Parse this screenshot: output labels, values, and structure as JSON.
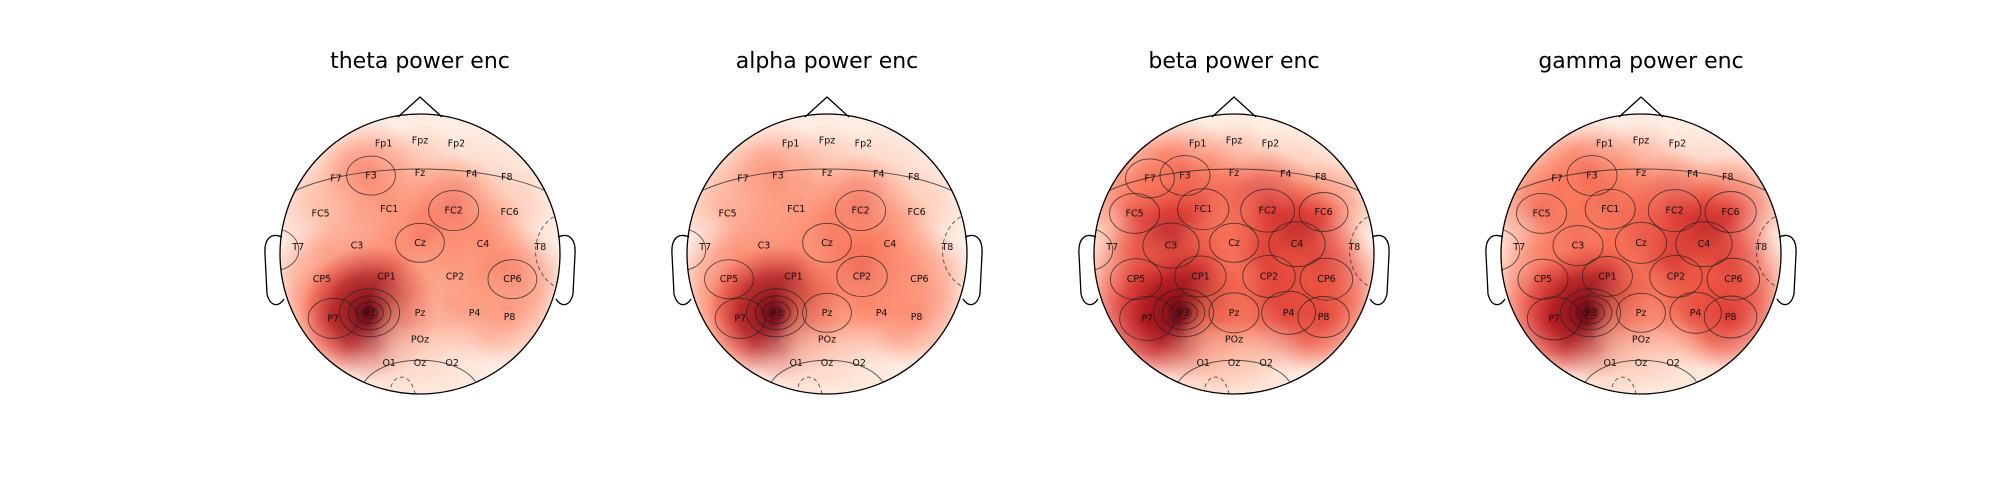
{
  "chart_data": [
    {
      "type": "heatmap",
      "subtype": "eeg-topomap",
      "title": "theta power enc",
      "colormap": "Reds",
      "electrode_values": {
        "Fp1": 0.05,
        "Fpz": 0.05,
        "Fp2": 0.05,
        "F7": 0.3,
        "F3": 0.55,
        "Fz": 0.35,
        "F4": 0.2,
        "F8": 0.15,
        "FC5": 0.35,
        "FC1": 0.45,
        "FC2": 0.6,
        "FC6": 0.3,
        "T7": 0.05,
        "C3": 0.45,
        "Cz": 0.55,
        "C4": 0.5,
        "T8": 0.05,
        "CP5": 0.5,
        "CP1": 0.5,
        "CP2": 0.45,
        "CP6": 0.55,
        "P7": 0.6,
        "P3": 1.0,
        "Pz": 0.45,
        "P4": 0.45,
        "P8": 0.4,
        "POz": 0.3,
        "O1": 0.2,
        "Oz": 0.12,
        "O2": 0.12
      }
    },
    {
      "type": "heatmap",
      "subtype": "eeg-topomap",
      "title": "alpha power enc",
      "colormap": "Reds",
      "electrode_values": {
        "Fp1": 0.05,
        "Fpz": 0.05,
        "Fp2": 0.05,
        "F7": 0.35,
        "F3": 0.5,
        "Fz": 0.35,
        "F4": 0.25,
        "F8": 0.15,
        "FC5": 0.4,
        "FC1": 0.45,
        "FC2": 0.6,
        "FC6": 0.3,
        "T7": 0.02,
        "C3": 0.5,
        "Cz": 0.55,
        "C4": 0.5,
        "T8": 0.05,
        "CP5": 0.55,
        "CP1": 0.5,
        "CP2": 0.62,
        "CP6": 0.5,
        "P7": 0.6,
        "P3": 1.0,
        "Pz": 0.55,
        "P4": 0.5,
        "P8": 0.45,
        "POz": 0.35,
        "O1": 0.2,
        "Oz": 0.12,
        "O2": 0.12
      }
    },
    {
      "type": "heatmap",
      "subtype": "eeg-topomap",
      "title": "beta power enc",
      "colormap": "Reds",
      "electrode_values": {
        "Fp1": 0.05,
        "Fpz": 0.05,
        "Fp2": 0.05,
        "F7": 0.55,
        "F3": 0.6,
        "Fz": 0.45,
        "F4": 0.3,
        "F8": 0.2,
        "FC5": 0.6,
        "FC1": 0.65,
        "FC2": 0.75,
        "FC6": 0.55,
        "T7": 0.05,
        "C3": 0.85,
        "Cz": 0.55,
        "C4": 0.85,
        "T8": 0.05,
        "CP5": 0.65,
        "CP1": 0.65,
        "CP2": 0.7,
        "CP6": 0.7,
        "P7": 0.8,
        "P3": 1.0,
        "Pz": 0.6,
        "P4": 0.75,
        "P8": 0.65,
        "POz": 0.5,
        "O1": 0.3,
        "Oz": 0.15,
        "O2": 0.15
      }
    },
    {
      "type": "heatmap",
      "subtype": "eeg-topomap",
      "title": "gamma power enc",
      "colormap": "Reds",
      "electrode_values": {
        "Fp1": 0.05,
        "Fpz": 0.05,
        "Fp2": 0.05,
        "F7": 0.5,
        "F3": 0.6,
        "Fz": 0.45,
        "F4": 0.25,
        "F8": 0.2,
        "FC5": 0.6,
        "FC1": 0.6,
        "FC2": 0.7,
        "FC6": 0.65,
        "T7": 0.05,
        "C3": 0.6,
        "Cz": 0.65,
        "C4": 0.85,
        "T8": 0.05,
        "CP5": 0.6,
        "CP1": 0.6,
        "CP2": 0.7,
        "CP6": 0.7,
        "P7": 0.75,
        "P3": 1.0,
        "Pz": 0.55,
        "P4": 0.65,
        "P8": 0.7,
        "POz": 0.4,
        "O1": 0.25,
        "Oz": 0.12,
        "O2": 0.15
      }
    }
  ]
}
